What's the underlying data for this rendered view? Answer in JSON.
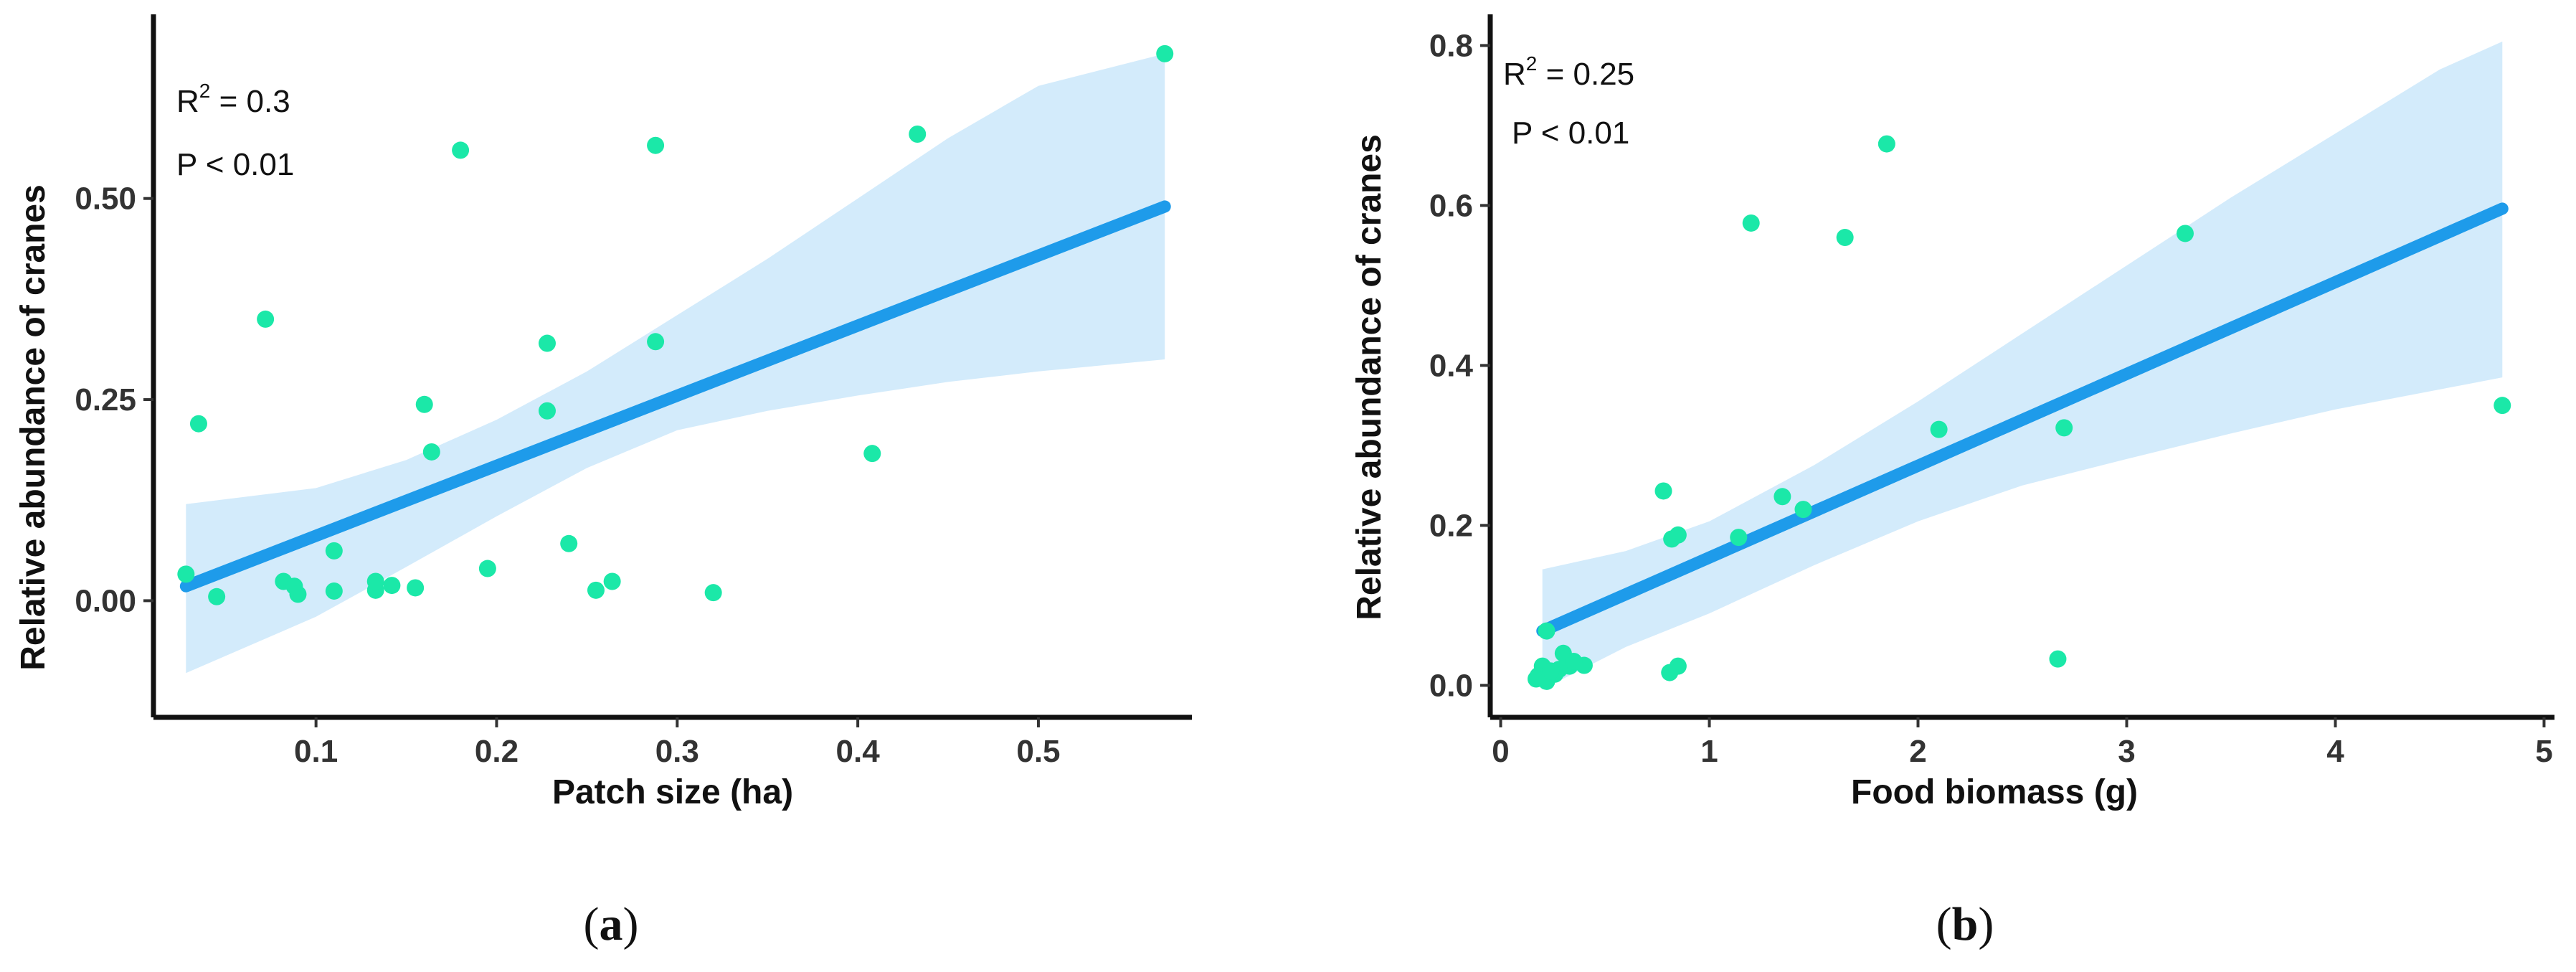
{
  "colors": {
    "point": "#1BE8A8",
    "line": "#1E9BEA",
    "band": "#D3EBFB",
    "axis": "#111111"
  },
  "chart_data": [
    {
      "type": "scatter",
      "panel": "a",
      "caption_letter": "a",
      "xlabel": "Patch size (ha)",
      "ylabel": "Relative abundance of cranes",
      "xlim": [
        0.01,
        0.585
      ],
      "ylim": [
        -0.145,
        0.72
      ],
      "x_ticks": [
        0.1,
        0.2,
        0.3,
        0.4,
        0.5
      ],
      "x_tick_labels": [
        "0.1",
        "0.2",
        "0.3",
        "0.4",
        "0.5"
      ],
      "y_ticks": [
        0.0,
        0.25,
        0.5
      ],
      "y_tick_labels": [
        "0.00",
        "0.25",
        "0.50"
      ],
      "annotation": {
        "r2_label": "R",
        "r2_sup": "2",
        "r2_value": " = 0.3",
        "p_text": "P < 0.01"
      },
      "points": [
        {
          "x": 0.57,
          "y": 0.68
        },
        {
          "x": 0.433,
          "y": 0.58
        },
        {
          "x": 0.288,
          "y": 0.566
        },
        {
          "x": 0.18,
          "y": 0.56
        },
        {
          "x": 0.072,
          "y": 0.35
        },
        {
          "x": 0.228,
          "y": 0.32
        },
        {
          "x": 0.288,
          "y": 0.322
        },
        {
          "x": 0.16,
          "y": 0.244
        },
        {
          "x": 0.228,
          "y": 0.236
        },
        {
          "x": 0.035,
          "y": 0.22
        },
        {
          "x": 0.164,
          "y": 0.185
        },
        {
          "x": 0.408,
          "y": 0.183
        },
        {
          "x": 0.24,
          "y": 0.071
        },
        {
          "x": 0.11,
          "y": 0.062
        },
        {
          "x": 0.195,
          "y": 0.04
        },
        {
          "x": 0.028,
          "y": 0.033
        },
        {
          "x": 0.082,
          "y": 0.024
        },
        {
          "x": 0.088,
          "y": 0.018
        },
        {
          "x": 0.09,
          "y": 0.008
        },
        {
          "x": 0.045,
          "y": 0.005
        },
        {
          "x": 0.11,
          "y": 0.012
        },
        {
          "x": 0.133,
          "y": 0.013
        },
        {
          "x": 0.133,
          "y": 0.024
        },
        {
          "x": 0.142,
          "y": 0.019
        },
        {
          "x": 0.155,
          "y": 0.016
        },
        {
          "x": 0.255,
          "y": 0.013
        },
        {
          "x": 0.264,
          "y": 0.024
        },
        {
          "x": 0.32,
          "y": 0.01
        }
      ],
      "fit": {
        "x": [
          0.028,
          0.57
        ],
        "y": [
          0.018,
          0.49
        ]
      },
      "ci_band": {
        "x": [
          0.028,
          0.1,
          0.15,
          0.2,
          0.25,
          0.3,
          0.35,
          0.4,
          0.45,
          0.5,
          0.57
        ],
        "upper": [
          0.12,
          0.14,
          0.175,
          0.225,
          0.285,
          0.355,
          0.425,
          0.5,
          0.575,
          0.64,
          0.68
        ],
        "lower": [
          -0.09,
          -0.02,
          0.042,
          0.105,
          0.165,
          0.212,
          0.236,
          0.255,
          0.272,
          0.285,
          0.3
        ]
      }
    },
    {
      "type": "scatter",
      "panel": "b",
      "caption_letter": "b",
      "xlabel": "Food biomass (g)",
      "ylabel": "Relative abundance of cranes",
      "xlim": [
        -0.05,
        5.05
      ],
      "ylim": [
        -0.04,
        0.83
      ],
      "x_ticks": [
        0,
        1,
        2,
        3,
        4,
        5
      ],
      "x_tick_labels": [
        "0",
        "1",
        "2",
        "3",
        "4",
        "5"
      ],
      "y_ticks": [
        0.0,
        0.2,
        0.4,
        0.6,
        0.8
      ],
      "y_tick_labels": [
        "0.0",
        "0.2",
        "0.4",
        "0.6",
        "0.8"
      ],
      "annotation": {
        "r2_label": "R",
        "r2_sup": "2",
        "r2_value": " = 0.25",
        "p_text": "P < 0.01"
      },
      "points": [
        {
          "x": 1.85,
          "y": 0.677
        },
        {
          "x": 1.2,
          "y": 0.578
        },
        {
          "x": 1.65,
          "y": 0.56
        },
        {
          "x": 3.28,
          "y": 0.565
        },
        {
          "x": 4.8,
          "y": 0.35
        },
        {
          "x": 2.1,
          "y": 0.32
        },
        {
          "x": 2.7,
          "y": 0.322
        },
        {
          "x": 0.78,
          "y": 0.243
        },
        {
          "x": 1.35,
          "y": 0.236
        },
        {
          "x": 1.45,
          "y": 0.22
        },
        {
          "x": 1.14,
          "y": 0.185
        },
        {
          "x": 0.82,
          "y": 0.183
        },
        {
          "x": 0.85,
          "y": 0.188
        },
        {
          "x": 0.22,
          "y": 0.068
        },
        {
          "x": 0.3,
          "y": 0.04
        },
        {
          "x": 2.67,
          "y": 0.033
        },
        {
          "x": 0.85,
          "y": 0.024
        },
        {
          "x": 0.81,
          "y": 0.016
        },
        {
          "x": 0.4,
          "y": 0.025
        },
        {
          "x": 0.33,
          "y": 0.024
        },
        {
          "x": 0.28,
          "y": 0.02
        },
        {
          "x": 0.26,
          "y": 0.014
        },
        {
          "x": 0.2,
          "y": 0.024
        },
        {
          "x": 0.18,
          "y": 0.012
        },
        {
          "x": 0.17,
          "y": 0.008
        },
        {
          "x": 0.22,
          "y": 0.005
        },
        {
          "x": 0.24,
          "y": 0.018
        },
        {
          "x": 0.35,
          "y": 0.03
        }
      ],
      "fit": {
        "x": [
          0.2,
          4.8
        ],
        "y": [
          0.068,
          0.596
        ]
      },
      "ci_band": {
        "x": [
          0.2,
          0.6,
          1.0,
          1.5,
          2.0,
          2.5,
          3.0,
          3.5,
          4.0,
          4.5,
          4.8
        ],
        "upper": [
          0.145,
          0.168,
          0.205,
          0.275,
          0.355,
          0.44,
          0.525,
          0.61,
          0.69,
          0.77,
          0.805
        ],
        "lower": [
          -0.005,
          0.048,
          0.09,
          0.15,
          0.205,
          0.25,
          0.283,
          0.315,
          0.345,
          0.37,
          0.385
        ]
      }
    }
  ]
}
